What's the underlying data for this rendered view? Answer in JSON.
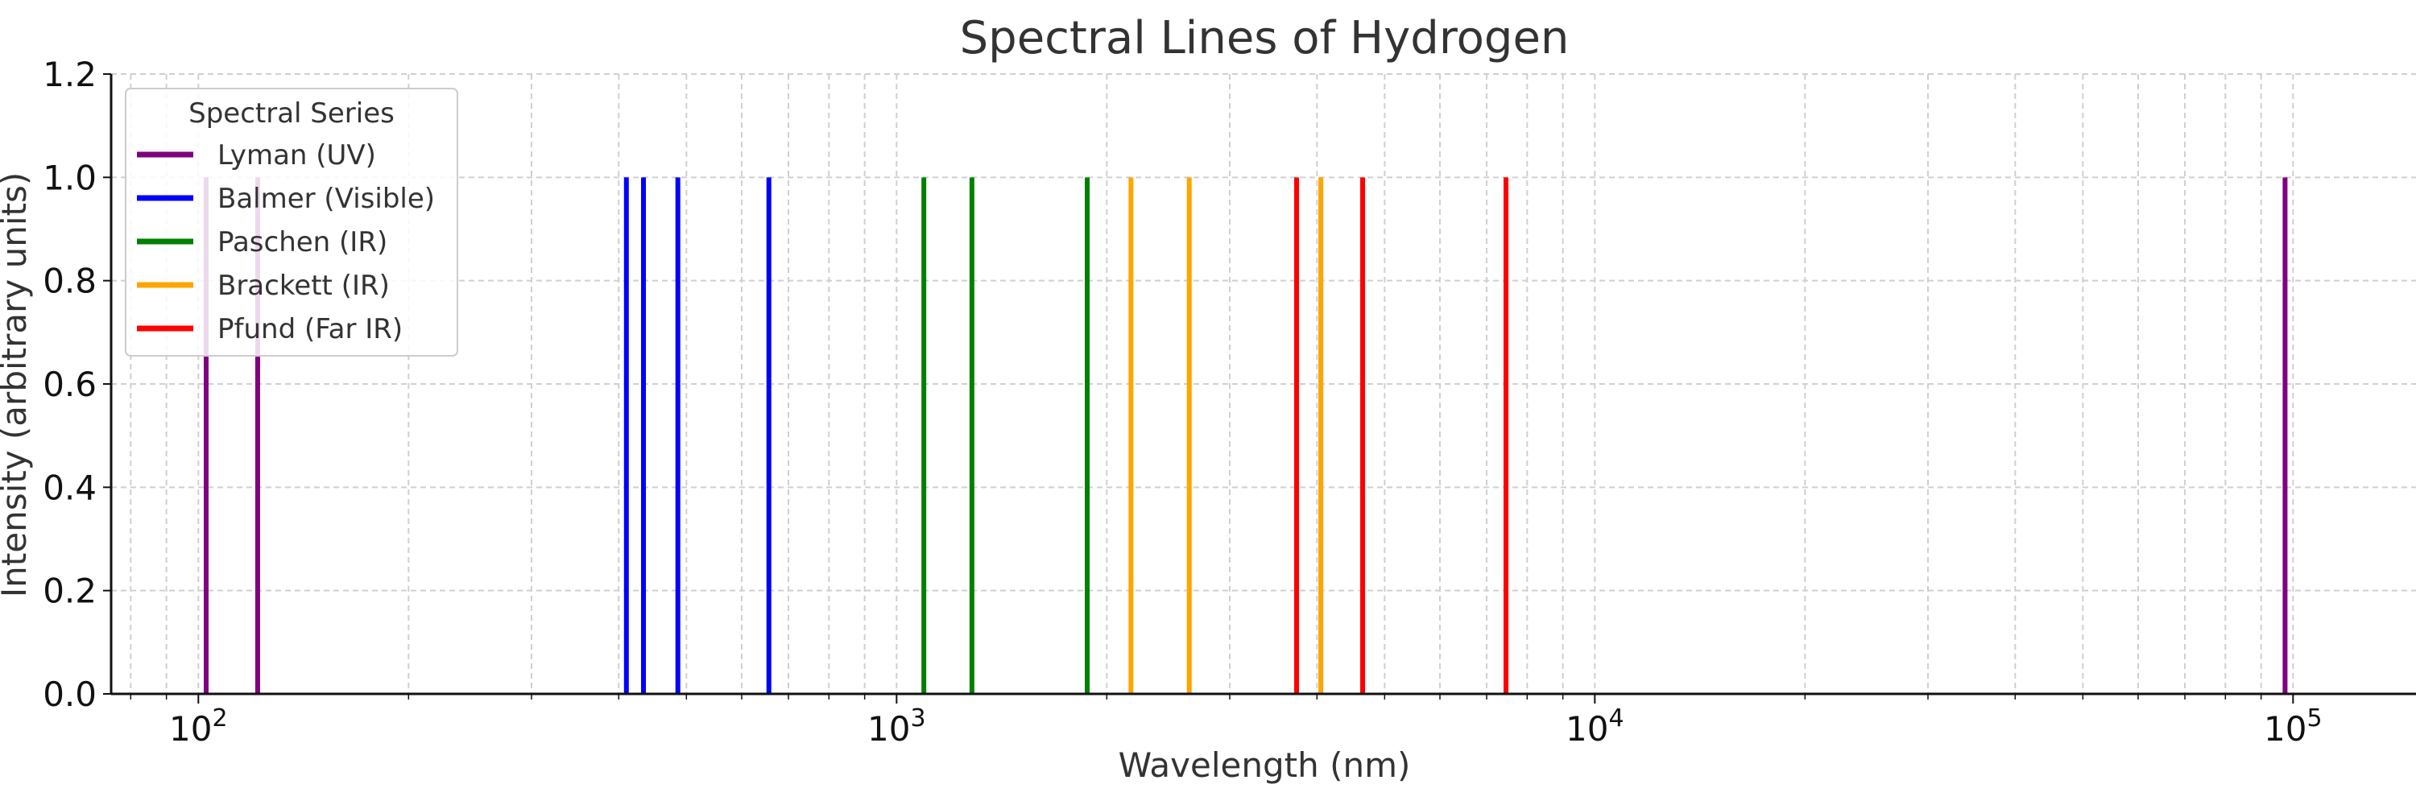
{
  "chart_data": {
    "type": "line",
    "title": "Spectral Lines of Hydrogen",
    "xlabel": "Wavelength (nm)",
    "ylabel": "Intensity (arbitrary units)",
    "x_scale": "log",
    "xlim": [
      75,
      150000
    ],
    "ylim": [
      0,
      1.2
    ],
    "grid": true,
    "x_major_ticks": [
      100,
      1000,
      10000,
      100000
    ],
    "x_tick_labels": [
      {
        "base": "10",
        "exp": "2"
      },
      {
        "base": "10",
        "exp": "3"
      },
      {
        "base": "10",
        "exp": "4"
      },
      {
        "base": "10",
        "exp": "5"
      }
    ],
    "y_ticks": [
      0.0,
      0.2,
      0.4,
      0.6,
      0.8,
      1.0,
      1.2
    ],
    "y_tick_labels": [
      "0.0",
      "0.2",
      "0.4",
      "0.6",
      "0.8",
      "1.0",
      "1.2"
    ],
    "legend": {
      "title": "Spectral Series",
      "placement": "top-left"
    },
    "series": [
      {
        "name": "Lyman (UV)",
        "color": "#800080",
        "x": [
          102.6,
          121.6,
          97400
        ],
        "y": [
          1,
          1,
          1
        ]
      },
      {
        "name": "Balmer (Visible)",
        "color": "#0000ff",
        "x": [
          410.2,
          434.0,
          486.1,
          656.3
        ],
        "y": [
          1,
          1,
          1,
          1
        ]
      },
      {
        "name": "Paschen (IR)",
        "color": "#008000",
        "x": [
          1094,
          1282,
          1875
        ],
        "y": [
          1,
          1,
          1
        ]
      },
      {
        "name": "Brackett (IR)",
        "color": "#ffa500",
        "x": [
          2166,
          2625,
          4051
        ],
        "y": [
          1,
          1,
          1
        ]
      },
      {
        "name": "Pfund (Far IR)",
        "color": "#ff0000",
        "x": [
          3740,
          4650,
          7460
        ],
        "y": [
          1,
          1,
          1
        ]
      }
    ]
  }
}
